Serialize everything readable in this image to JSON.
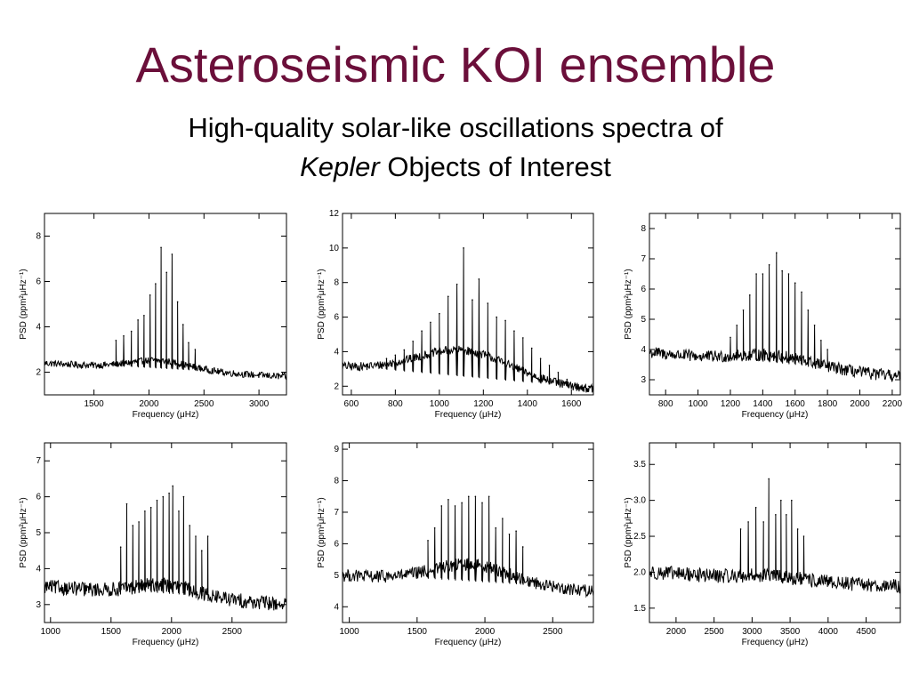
{
  "title": "Asteroseismic KOI ensemble",
  "subtitle": {
    "line1": "High-quality solar-like oscillations spectra of",
    "kepler_word": "Kepler",
    "line2_rest": " Objects of Interest"
  },
  "colors": {
    "title": "#6b0f3a",
    "trace": "#000000"
  },
  "chart_data": [
    {
      "type": "line",
      "xlabel": "Frequency (μHz)",
      "ylabel": "PSD (ppm²μHz⁻¹)",
      "xlim": [
        1050,
        3250
      ],
      "ylim": [
        1.0,
        9.0
      ],
      "xticks": [
        1500,
        2000,
        2500,
        3000
      ],
      "yticks": [
        2,
        4,
        6,
        8
      ],
      "baseline": [
        [
          1050,
          2.4
        ],
        [
          3250,
          1.8
        ]
      ],
      "noise": 0.15,
      "envelope": {
        "center": 2100,
        "width": 380,
        "height": 0.4
      },
      "peaks": [
        {
          "x": 1700,
          "y": 3.4
        },
        {
          "x": 1770,
          "y": 3.6
        },
        {
          "x": 1840,
          "y": 3.8
        },
        {
          "x": 1900,
          "y": 4.3
        },
        {
          "x": 1955,
          "y": 4.5
        },
        {
          "x": 2010,
          "y": 5.4
        },
        {
          "x": 2060,
          "y": 5.9
        },
        {
          "x": 2110,
          "y": 7.5
        },
        {
          "x": 2160,
          "y": 6.4
        },
        {
          "x": 2210,
          "y": 7.2
        },
        {
          "x": 2260,
          "y": 5.1
        },
        {
          "x": 2310,
          "y": 4.1
        },
        {
          "x": 2360,
          "y": 3.3
        },
        {
          "x": 2420,
          "y": 3.0
        }
      ]
    },
    {
      "type": "line",
      "xlabel": "Frequency (μHz)",
      "ylabel": "PSD (ppm²μHz⁻¹)",
      "xlim": [
        560,
        1700
      ],
      "ylim": [
        1.5,
        12.0
      ],
      "xticks": [
        600,
        800,
        1000,
        1200,
        1400,
        1600
      ],
      "yticks": [
        2,
        4,
        6,
        8,
        10,
        12
      ],
      "baseline": [
        [
          560,
          3.1
        ],
        [
          1700,
          1.8
        ]
      ],
      "noise": 0.25,
      "envelope": {
        "center": 1110,
        "width": 300,
        "height": 1.6
      },
      "peaks": [
        {
          "x": 760,
          "y": 3.6
        },
        {
          "x": 800,
          "y": 3.8
        },
        {
          "x": 840,
          "y": 4.1
        },
        {
          "x": 880,
          "y": 4.6
        },
        {
          "x": 920,
          "y": 5.2
        },
        {
          "x": 960,
          "y": 5.7
        },
        {
          "x": 1000,
          "y": 6.2
        },
        {
          "x": 1040,
          "y": 7.2
        },
        {
          "x": 1080,
          "y": 7.9
        },
        {
          "x": 1110,
          "y": 10.0
        },
        {
          "x": 1150,
          "y": 7.0
        },
        {
          "x": 1180,
          "y": 8.2
        },
        {
          "x": 1220,
          "y": 6.8
        },
        {
          "x": 1260,
          "y": 6.0
        },
        {
          "x": 1300,
          "y": 5.8
        },
        {
          "x": 1340,
          "y": 5.2
        },
        {
          "x": 1380,
          "y": 4.8
        },
        {
          "x": 1420,
          "y": 4.2
        },
        {
          "x": 1460,
          "y": 3.6
        },
        {
          "x": 1500,
          "y": 3.2
        },
        {
          "x": 1540,
          "y": 2.8
        },
        {
          "x": 1580,
          "y": 2.4
        },
        {
          "x": 1620,
          "y": 2.1
        }
      ]
    },
    {
      "type": "line",
      "xlabel": "Frequency (μHz)",
      "ylabel": "PSD (ppm²μHz⁻¹)",
      "xlim": [
        700,
        2250
      ],
      "ylim": [
        2.5,
        8.5
      ],
      "xticks": [
        800,
        1000,
        1200,
        1400,
        1600,
        1800,
        2000,
        2200
      ],
      "yticks": [
        3,
        4,
        5,
        6,
        7,
        8
      ],
      "baseline": [
        [
          700,
          3.9
        ],
        [
          2250,
          3.1
        ]
      ],
      "noise": 0.2,
      "envelope": {
        "center": 1480,
        "width": 320,
        "height": 0.3
      },
      "peaks": [
        {
          "x": 1200,
          "y": 4.4
        },
        {
          "x": 1240,
          "y": 4.8
        },
        {
          "x": 1280,
          "y": 5.3
        },
        {
          "x": 1320,
          "y": 5.8
        },
        {
          "x": 1360,
          "y": 6.5
        },
        {
          "x": 1400,
          "y": 6.5
        },
        {
          "x": 1440,
          "y": 6.8
        },
        {
          "x": 1485,
          "y": 7.2
        },
        {
          "x": 1520,
          "y": 6.6
        },
        {
          "x": 1560,
          "y": 6.5
        },
        {
          "x": 1600,
          "y": 6.2
        },
        {
          "x": 1640,
          "y": 5.9
        },
        {
          "x": 1680,
          "y": 5.3
        },
        {
          "x": 1720,
          "y": 4.8
        },
        {
          "x": 1760,
          "y": 4.3
        },
        {
          "x": 1800,
          "y": 4.0
        }
      ]
    },
    {
      "type": "line",
      "xlabel": "Frequency (μHz)",
      "ylabel": "PSD (ppm²μHz⁻¹)",
      "xlim": [
        950,
        2950
      ],
      "ylim": [
        2.5,
        7.5
      ],
      "xticks": [
        1000,
        1500,
        2000,
        2500
      ],
      "yticks": [
        3,
        4,
        5,
        6,
        7
      ],
      "baseline": [
        [
          950,
          3.5
        ],
        [
          2950,
          3.0
        ]
      ],
      "noise": 0.2,
      "envelope": {
        "center": 1950,
        "width": 350,
        "height": 0.3
      },
      "peaks": [
        {
          "x": 1580,
          "y": 4.6
        },
        {
          "x": 1630,
          "y": 5.8
        },
        {
          "x": 1680,
          "y": 5.2
        },
        {
          "x": 1730,
          "y": 5.3
        },
        {
          "x": 1780,
          "y": 5.6
        },
        {
          "x": 1830,
          "y": 5.7
        },
        {
          "x": 1880,
          "y": 5.9
        },
        {
          "x": 1930,
          "y": 6.0
        },
        {
          "x": 1980,
          "y": 6.1
        },
        {
          "x": 2010,
          "y": 6.3
        },
        {
          "x": 2060,
          "y": 5.6
        },
        {
          "x": 2100,
          "y": 6.0
        },
        {
          "x": 2150,
          "y": 5.2
        },
        {
          "x": 2200,
          "y": 4.9
        },
        {
          "x": 2250,
          "y": 4.5
        },
        {
          "x": 2300,
          "y": 4.9
        }
      ]
    },
    {
      "type": "line",
      "xlabel": "Frequency (μHz)",
      "ylabel": "PSD (ppm²μHz⁻¹)",
      "xlim": [
        950,
        2800
      ],
      "ylim": [
        3.5,
        9.2
      ],
      "xticks": [
        1000,
        1500,
        2000,
        2500
      ],
      "yticks": [
        4,
        5,
        6,
        7,
        8,
        9
      ],
      "baseline": [
        [
          950,
          5.0
        ],
        [
          2800,
          4.5
        ]
      ],
      "noise": 0.2,
      "envelope": {
        "center": 1900,
        "width": 400,
        "height": 0.6
      },
      "peaks": [
        {
          "x": 1580,
          "y": 6.1
        },
        {
          "x": 1630,
          "y": 6.5
        },
        {
          "x": 1680,
          "y": 7.2
        },
        {
          "x": 1730,
          "y": 7.4
        },
        {
          "x": 1780,
          "y": 7.2
        },
        {
          "x": 1830,
          "y": 7.3
        },
        {
          "x": 1880,
          "y": 7.5
        },
        {
          "x": 1930,
          "y": 7.5
        },
        {
          "x": 1980,
          "y": 7.3
        },
        {
          "x": 2030,
          "y": 7.5
        },
        {
          "x": 2080,
          "y": 6.5
        },
        {
          "x": 2130,
          "y": 6.8
        },
        {
          "x": 2180,
          "y": 6.3
        },
        {
          "x": 2230,
          "y": 6.4
        },
        {
          "x": 2280,
          "y": 5.9
        }
      ]
    },
    {
      "type": "line",
      "xlabel": "Frequency (μHz)",
      "ylabel": "PSD (ppm²μHz⁻¹)",
      "xlim": [
        1650,
        4950
      ],
      "ylim": [
        1.3,
        3.8
      ],
      "xticks": [
        2000,
        2500,
        3000,
        3500,
        4000,
        4500
      ],
      "yticks": [
        1.5,
        2.0,
        2.5,
        3.0,
        3.5
      ],
      "ytick_labels": [
        "1.5",
        "2.0",
        "2.5",
        "3.0",
        "3.5"
      ],
      "baseline": [
        [
          1650,
          2.0
        ],
        [
          4950,
          1.8
        ]
      ],
      "noise": 0.1,
      "envelope": {
        "center": 3250,
        "width": 450,
        "height": 0.05
      },
      "peaks": [
        {
          "x": 2850,
          "y": 2.6
        },
        {
          "x": 2950,
          "y": 2.7
        },
        {
          "x": 3050,
          "y": 2.9
        },
        {
          "x": 3150,
          "y": 2.7
        },
        {
          "x": 3220,
          "y": 3.3
        },
        {
          "x": 3310,
          "y": 2.8
        },
        {
          "x": 3380,
          "y": 3.0
        },
        {
          "x": 3450,
          "y": 2.8
        },
        {
          "x": 3520,
          "y": 3.0
        },
        {
          "x": 3600,
          "y": 2.6
        },
        {
          "x": 3680,
          "y": 2.5
        }
      ]
    }
  ]
}
